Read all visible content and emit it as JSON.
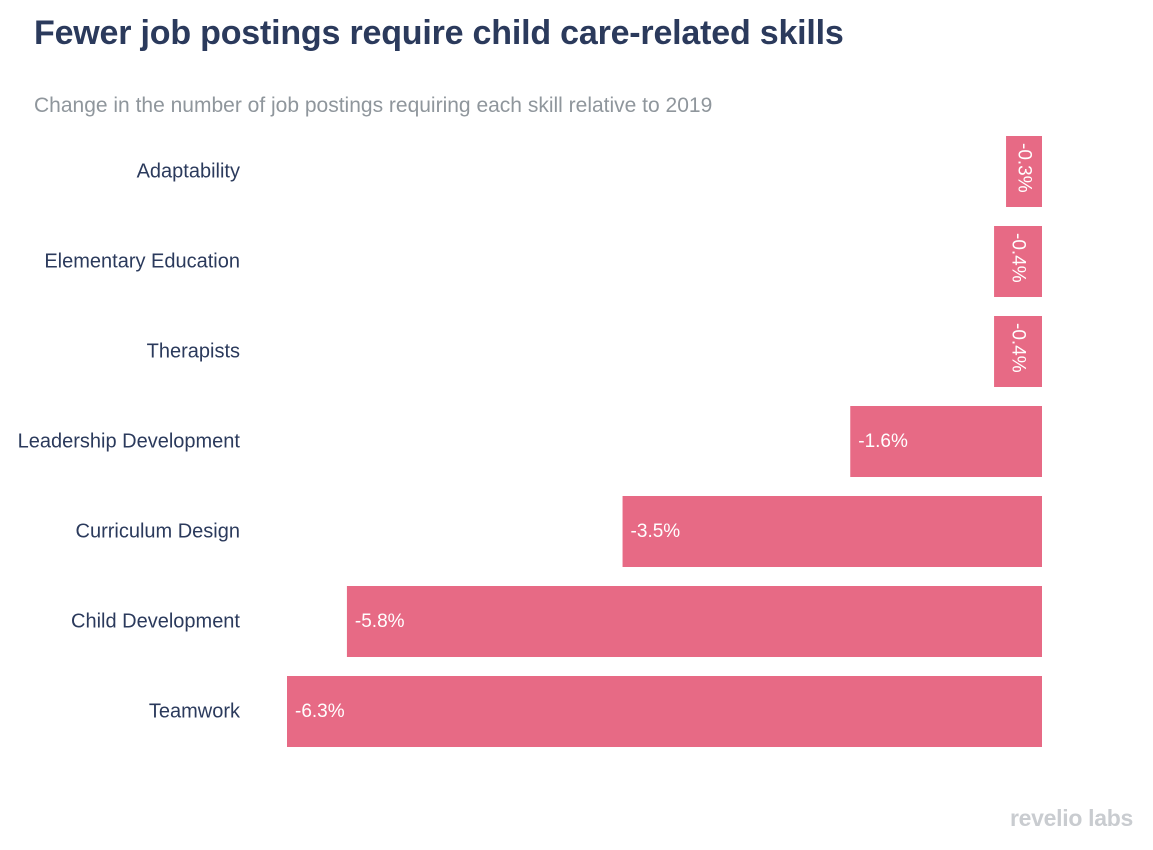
{
  "chart_data": {
    "type": "bar",
    "orientation": "horizontal",
    "title": "Fewer job postings require child care-related skills",
    "subtitle": "Change in the number of job postings requiring each skill relative to 2019",
    "categories": [
      "Adaptability",
      "Elementary Education",
      "Therapists",
      "Leadership Development",
      "Curriculum Design",
      "Child Development",
      "Teamwork"
    ],
    "values": [
      -0.3,
      -0.4,
      -0.4,
      -1.6,
      -3.5,
      -5.8,
      -6.3
    ],
    "value_labels": [
      "-0.3%",
      "-0.4%",
      "-0.4%",
      "-1.6%",
      "-3.5%",
      "-5.8%",
      "-6.3%"
    ],
    "unit": "%",
    "xlim": [
      -6.3,
      0
    ],
    "xlabel": "",
    "ylabel": "",
    "grid": false,
    "bar_color": "#e76a85"
  },
  "branding": {
    "logo_text": "revelio labs"
  }
}
